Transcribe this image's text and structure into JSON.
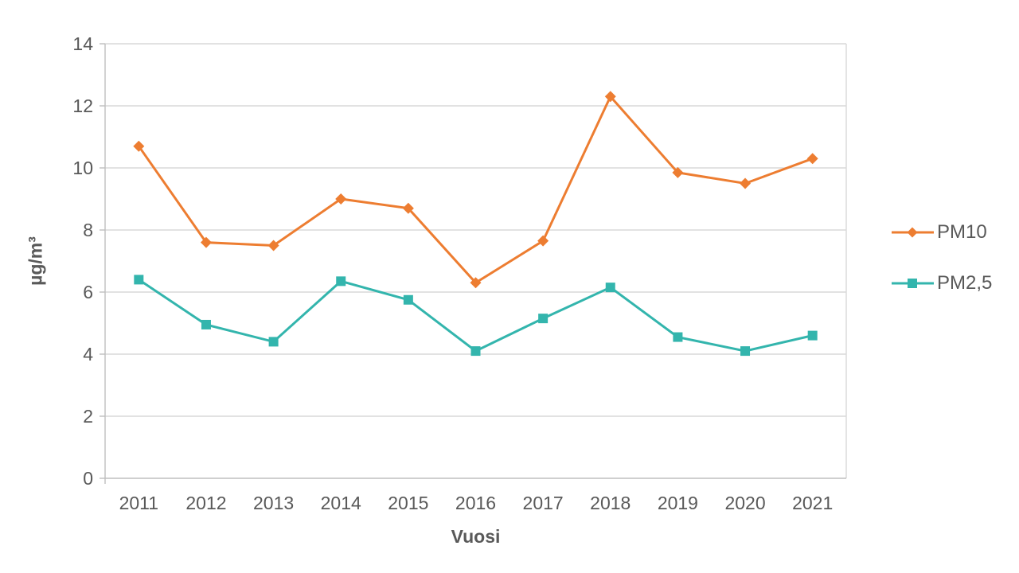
{
  "chart_data": {
    "type": "line",
    "categories": [
      "2011",
      "2012",
      "2013",
      "2014",
      "2015",
      "2016",
      "2017",
      "2018",
      "2019",
      "2020",
      "2021"
    ],
    "series": [
      {
        "name": "PM10",
        "color": "#ed7d31",
        "marker": "diamond",
        "values": [
          10.7,
          7.6,
          7.5,
          9.0,
          8.7,
          6.3,
          7.65,
          12.3,
          9.85,
          9.5,
          10.3
        ]
      },
      {
        "name": "PM2,5",
        "color": "#33b5ad",
        "marker": "square",
        "values": [
          6.4,
          4.95,
          4.4,
          6.35,
          5.75,
          4.1,
          5.15,
          6.15,
          4.55,
          4.1,
          4.6
        ]
      }
    ],
    "title": "",
    "xlabel": "Vuosi",
    "ylabel": "µg/m³",
    "ylim": [
      0,
      14
    ],
    "ytick_step": 2,
    "grid": "horizontal",
    "legend_position": "right"
  },
  "colors": {
    "background": "#ffffff",
    "text": "#595959",
    "gridline": "#d9d9d9",
    "axis": "#bfbfbf"
  }
}
